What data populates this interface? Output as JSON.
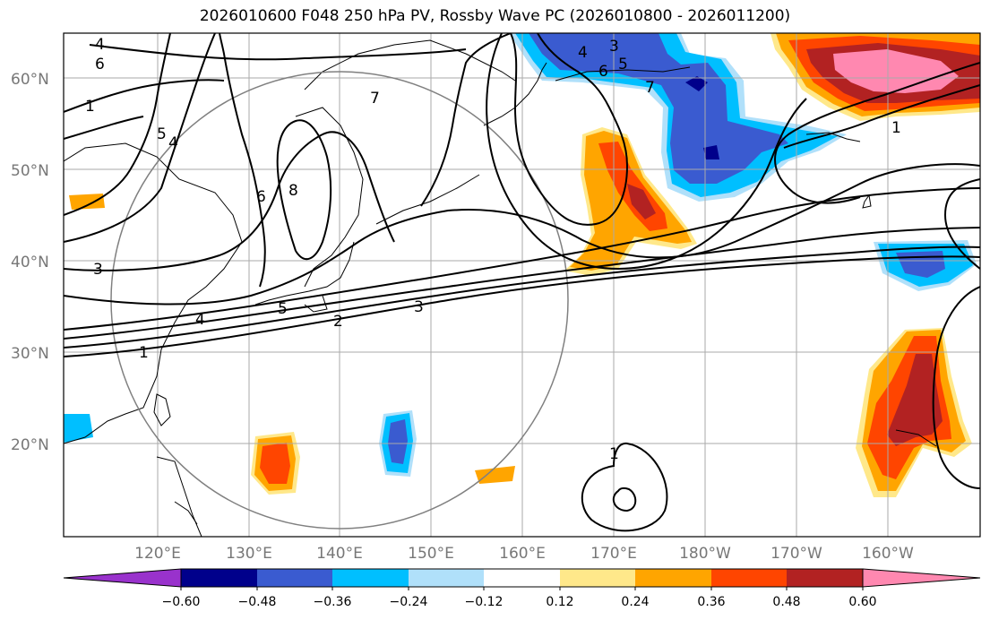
{
  "title": "2026010600 F048 250 hPa PV, Rossby Wave PC (2026010800 - 2026011200)",
  "lon_labels": [
    "120°E",
    "130°E",
    "140°E",
    "150°E",
    "160°E",
    "170°E",
    "180°W",
    "170°W",
    "160°W"
  ],
  "lat_labels": [
    "60°N",
    "50°N",
    "40°N",
    "30°N",
    "20°N"
  ],
  "colorbar": {
    "ticks": [
      "−0.60",
      "−0.48",
      "−0.36",
      "−0.24",
      "−0.12",
      "0.12",
      "0.24",
      "0.36",
      "0.48",
      "0.60"
    ],
    "colors": [
      "#9932cc",
      "#00008b",
      "#3a5bd0",
      "#00bfff",
      "#b0e0fa",
      "#ffffff",
      "#ffe88a",
      "#ffa500",
      "#ff4500",
      "#b22222",
      "#ff88b0"
    ]
  },
  "contour_labels": [
    "4",
    "6",
    "1",
    "5",
    "4",
    "6",
    "8",
    "7",
    "3",
    "5",
    "4",
    "6",
    "7",
    "1",
    "3",
    "4",
    "5",
    "1",
    "2",
    "3",
    "1"
  ],
  "colors": {
    "positive_weak": "#ffe88a",
    "positive_mid": "#ffa500",
    "positive_strong": "#ff4500",
    "positive_max": "#b22222",
    "positive_extreme": "#ff88b0",
    "negative_weak": "#b0e0fa",
    "negative_mid": "#00bfff",
    "negative_strong": "#3a5bd0",
    "negative_max": "#00008b"
  }
}
